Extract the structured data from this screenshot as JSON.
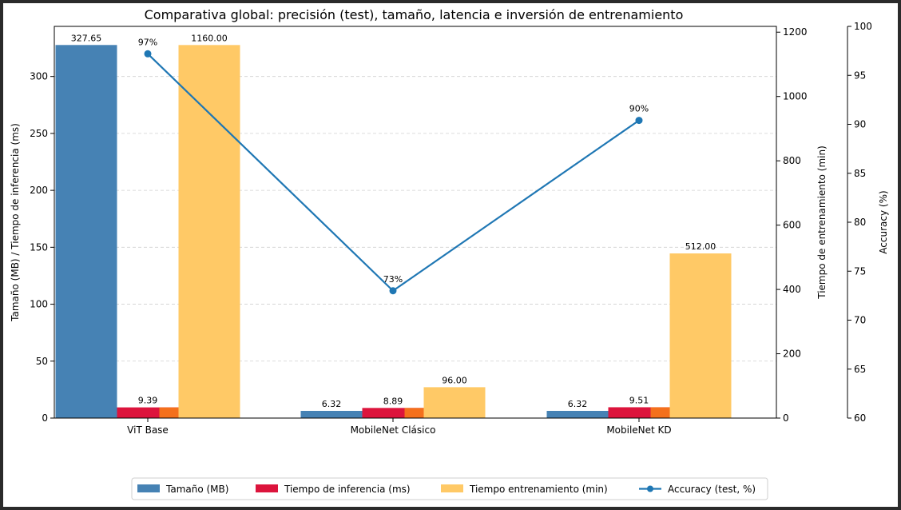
{
  "chart_data": {
    "type": "bar",
    "title": "Comparativa global: precisión (test), tamaño, latencia e inversión de entrenamiento",
    "categories": [
      "ViT Base",
      "MobileNet Clásico",
      "MobileNet KD"
    ],
    "series": [
      {
        "name": "Tamaño (MB)",
        "axis": "left",
        "color": "#4682b4",
        "values": [
          327.65,
          6.32,
          6.32
        ],
        "labels": [
          "327.65",
          "6.32",
          "6.32"
        ]
      },
      {
        "name": "Tiempo de inferencia (ms)",
        "axis": "left",
        "color": "#dc143c",
        "values": [
          9.39,
          8.89,
          9.51
        ],
        "labels": [
          "9.39",
          "8.89",
          "9.51"
        ]
      },
      {
        "name": "Tiempo entrenamiento (min)",
        "axis": "right",
        "color": "#ffc966",
        "values": [
          1160.0,
          96.0,
          512.0
        ],
        "labels": [
          "1160.00",
          "96.00",
          "512.00"
        ]
      },
      {
        "name": "Accuracy (test, %)",
        "axis": "accuracy",
        "type": "line",
        "color": "#1f77b4",
        "values": [
          97.2,
          73.0,
          90.4
        ],
        "labels": [
          "97%",
          "73%",
          "90%"
        ]
      }
    ],
    "axes": {
      "left": {
        "label": "Tamaño (MB) / Tiempo de inferencia (ms)",
        "range": [
          0,
          344
        ],
        "ticks": [
          0,
          50,
          100,
          150,
          200,
          250,
          300
        ]
      },
      "right": {
        "label": "Tiempo de entrenamiento (min)",
        "range": [
          0,
          1218
        ],
        "ticks": [
          0,
          200,
          400,
          600,
          800,
          1000,
          1200
        ]
      },
      "accuracy": {
        "label": "Accuracy (%)",
        "range": [
          60,
          100
        ],
        "ticks": [
          60,
          65,
          70,
          75,
          80,
          85,
          90,
          95,
          100
        ]
      }
    },
    "grid": "horizontal dashed",
    "legend": "bottom-center"
  }
}
